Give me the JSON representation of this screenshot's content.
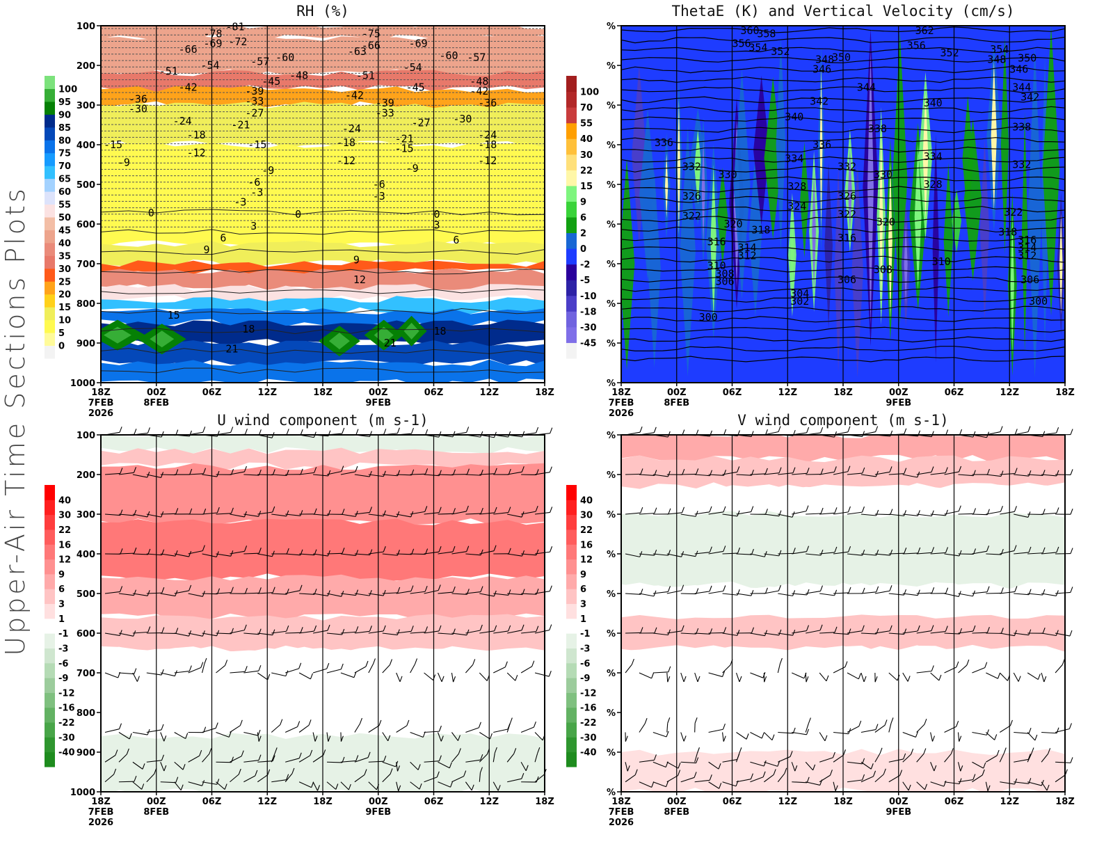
{
  "page": {
    "side_title": "Upper-Air Time Sections Plots"
  },
  "time_axis": {
    "ticks": [
      "18Z",
      "00Z",
      "06Z",
      "12Z",
      "18Z",
      "00Z",
      "06Z",
      "12Z",
      "18Z"
    ],
    "date_labels": [
      {
        "tick": 0,
        "lines": [
          "7FEB",
          "2026"
        ]
      },
      {
        "tick": 1,
        "lines": [
          "8FEB"
        ]
      },
      {
        "tick": 5,
        "lines": [
          "9FEB"
        ]
      }
    ]
  },
  "chart_data": [
    {
      "id": "rh",
      "type": "heatmap",
      "title": "RH (%)",
      "xlabel": "",
      "ylabel": "",
      "y_ticks": [
        "100",
        "200",
        "300",
        "400",
        "500",
        "600",
        "700",
        "800",
        "900",
        "1000"
      ],
      "ylim": [
        100,
        1000
      ],
      "colorbar": {
        "labels": [
          "0",
          "5",
          "10",
          "15",
          "20",
          "25",
          "30",
          "35",
          "40",
          "45",
          "50",
          "55",
          "60",
          "65",
          "70",
          "75",
          "80",
          "85",
          "90",
          "95",
          "100"
        ],
        "colors": [
          "#f3f3f3",
          "#fffb9a",
          "#fffa50",
          "#f0ee5a",
          "#ffd11a",
          "#ffa31a",
          "#ff5a1a",
          "#e8796a",
          "#ea8b7a",
          "#eda48c",
          "#f3bea6",
          "#fbe2e2",
          "#dde3fb",
          "#a3d2ff",
          "#32c0ff",
          "#169bff",
          "#0a73ea",
          "#0448b9",
          "#002b8c",
          "#058005",
          "#36ae36",
          "#7ce27c"
        ]
      },
      "layers": [
        {
          "p": [
            100,
            130
          ],
          "rh": 40
        },
        {
          "p": [
            130,
            220
          ],
          "rh": 42
        },
        {
          "p": [
            220,
            260
          ],
          "rh": 30
        },
        {
          "p": [
            260,
            300
          ],
          "rh": 20
        },
        {
          "p": [
            300,
            400
          ],
          "rh": 10
        },
        {
          "p": [
            400,
            650
          ],
          "rh": 8
        },
        {
          "p": [
            650,
            700
          ],
          "rh": 12
        },
        {
          "p": [
            700,
            720
          ],
          "rh": 25
        },
        {
          "p": [
            720,
            760
          ],
          "rh": 38
        },
        {
          "p": [
            760,
            790
          ],
          "rh": 50
        },
        {
          "p": [
            790,
            820
          ],
          "rh": 65
        },
        {
          "p": [
            820,
            850
          ],
          "rh": 75
        },
        {
          "p": [
            850,
            900
          ],
          "rh": 85
        },
        {
          "p": [
            900,
            950
          ],
          "rh": 80
        },
        {
          "p": [
            950,
            1000
          ],
          "rh": 75
        }
      ],
      "contour_labels": [
        {
          "t": 1.0,
          "p": 120,
          "v": "-78"
        },
        {
          "t": 1.4,
          "p": 103,
          "v": "-81"
        },
        {
          "t": 1.0,
          "p": 145,
          "v": "-69"
        },
        {
          "t": 1.45,
          "p": 140,
          "v": "-72"
        },
        {
          "t": 0.55,
          "p": 160,
          "v": "-66"
        },
        {
          "t": 0.2,
          "p": 215,
          "v": "-51"
        },
        {
          "t": 0.95,
          "p": 200,
          "v": "-54"
        },
        {
          "t": 1.85,
          "p": 190,
          "v": "-57"
        },
        {
          "t": 2.3,
          "p": 180,
          "v": "-60"
        },
        {
          "t": 2.55,
          "p": 225,
          "v": "-48"
        },
        {
          "t": 2.05,
          "p": 240,
          "v": "-45"
        },
        {
          "t": 0.55,
          "p": 255,
          "v": "-42"
        },
        {
          "t": -0.35,
          "p": 285,
          "v": "-36"
        },
        {
          "t": -0.35,
          "p": 310,
          "v": "-30"
        },
        {
          "t": 1.75,
          "p": 265,
          "v": "-39"
        },
        {
          "t": 1.75,
          "p": 290,
          "v": "-33"
        },
        {
          "t": 1.75,
          "p": 320,
          "v": "-27"
        },
        {
          "t": 1.5,
          "p": 350,
          "v": "-21"
        },
        {
          "t": 0.45,
          "p": 340,
          "v": "-24"
        },
        {
          "t": 0.7,
          "p": 375,
          "v": "-18"
        },
        {
          "t": 1.8,
          "p": 400,
          "v": "-15"
        },
        {
          "t": 0.7,
          "p": 420,
          "v": "-12"
        },
        {
          "t": -0.8,
          "p": 400,
          "v": "-15"
        },
        {
          "t": -0.55,
          "p": 445,
          "v": "-9"
        },
        {
          "t": 1.8,
          "p": 495,
          "v": "-6"
        },
        {
          "t": 1.85,
          "p": 520,
          "v": "-3"
        },
        {
          "t": 3.6,
          "p": 165,
          "v": "-63"
        },
        {
          "t": 3.85,
          "p": 150,
          "v": "-66"
        },
        {
          "t": 3.85,
          "p": 120,
          "v": "-75"
        },
        {
          "t": 4.7,
          "p": 145,
          "v": "-69"
        },
        {
          "t": 3.75,
          "p": 225,
          "v": "-51"
        },
        {
          "t": 4.6,
          "p": 205,
          "v": "-54"
        },
        {
          "t": 5.25,
          "p": 175,
          "v": "-60"
        },
        {
          "t": 5.75,
          "p": 180,
          "v": "-57"
        },
        {
          "t": 4.65,
          "p": 255,
          "v": "-45"
        },
        {
          "t": 3.55,
          "p": 275,
          "v": "-42"
        },
        {
          "t": 4.1,
          "p": 295,
          "v": "-39"
        },
        {
          "t": 4.1,
          "p": 320,
          "v": "-33"
        },
        {
          "t": 4.75,
          "p": 345,
          "v": "-27"
        },
        {
          "t": 5.5,
          "p": 335,
          "v": "-30"
        },
        {
          "t": 5.8,
          "p": 240,
          "v": "-48"
        },
        {
          "t": 5.8,
          "p": 265,
          "v": "-42"
        },
        {
          "t": 5.95,
          "p": 295,
          "v": "-36"
        },
        {
          "t": 3.5,
          "p": 360,
          "v": "-24"
        },
        {
          "t": 4.45,
          "p": 385,
          "v": "-21"
        },
        {
          "t": 3.4,
          "p": 395,
          "v": "-18"
        },
        {
          "t": 4.45,
          "p": 410,
          "v": "-15"
        },
        {
          "t": 3.4,
          "p": 440,
          "v": "-12"
        },
        {
          "t": 4.65,
          "p": 460,
          "v": "-9"
        },
        {
          "t": 5.95,
          "p": 375,
          "v": "-24"
        },
        {
          "t": 5.95,
          "p": 400,
          "v": "-18"
        },
        {
          "t": 5.95,
          "p": 440,
          "v": "-12"
        },
        {
          "t": 2.05,
          "p": 465,
          "v": "-9"
        },
        {
          "t": 4.05,
          "p": 500,
          "v": "-6"
        },
        {
          "t": 4.05,
          "p": 530,
          "v": "-3"
        },
        {
          "t": 1.55,
          "p": 545,
          "v": "-3"
        },
        {
          "t": 0.0,
          "p": 572,
          "v": "0"
        },
        {
          "t": 2.65,
          "p": 575,
          "v": "0"
        },
        {
          "t": 5.15,
          "p": 575,
          "v": "0"
        },
        {
          "t": 1.85,
          "p": 605,
          "v": "3"
        },
        {
          "t": 5.15,
          "p": 603,
          "v": "3"
        },
        {
          "t": 1.3,
          "p": 635,
          "v": "6"
        },
        {
          "t": 5.5,
          "p": 640,
          "v": "6"
        },
        {
          "t": 1.0,
          "p": 665,
          "v": "9"
        },
        {
          "t": 3.7,
          "p": 690,
          "v": "9"
        },
        {
          "t": 3.7,
          "p": 740,
          "v": "12"
        },
        {
          "t": 0.35,
          "p": 830,
          "v": "15"
        },
        {
          "t": 1.7,
          "p": 865,
          "v": "18"
        },
        {
          "t": 5.15,
          "p": 870,
          "v": "18"
        },
        {
          "t": 1.4,
          "p": 915,
          "v": "21"
        },
        {
          "t": 4.25,
          "p": 900,
          "v": "21"
        }
      ]
    },
    {
      "id": "thetae",
      "type": "heatmap",
      "title": "ThetaE (K) and Vertical Velocity (cm/s)",
      "xlabel": "",
      "ylabel": "",
      "y_ticks": [
        "%",
        "%",
        "%",
        "%",
        "%",
        "%",
        "%",
        "%",
        "%",
        "%"
      ],
      "colorbar": {
        "labels": [
          "-45",
          "-30",
          "-18",
          "-10",
          "-5",
          "-2",
          "0",
          "2",
          "6",
          "9",
          "15",
          "22",
          "30",
          "40",
          "55",
          "70",
          "100"
        ],
        "colors": [
          "#f3f3f3",
          "#7f6fe8",
          "#7063df",
          "#4b3ec8",
          "#2d22a6",
          "#2a009c",
          "#1e3cff",
          "#1867d4",
          "#11a011",
          "#39d339",
          "#7ef57e",
          "#fff7a8",
          "#ffe07a",
          "#ffc03a",
          "#ff9f00",
          "#c93c3c",
          "#b22828",
          "#a21e1e"
        ]
      },
      "contour_labels": [
        {
          "t": 1.3,
          "p": 112,
          "v": "360"
        },
        {
          "t": 1.6,
          "p": 120,
          "v": "358"
        },
        {
          "t": 1.15,
          "p": 145,
          "v": "356"
        },
        {
          "t": 1.45,
          "p": 155,
          "v": "354"
        },
        {
          "t": 1.85,
          "p": 165,
          "v": "352"
        },
        {
          "t": 2.65,
          "p": 185,
          "v": "348"
        },
        {
          "t": 2.95,
          "p": 180,
          "v": "350"
        },
        {
          "t": 2.6,
          "p": 210,
          "v": "346"
        },
        {
          "t": 4.45,
          "p": 112,
          "v": "362"
        },
        {
          "t": 4.3,
          "p": 150,
          "v": "356"
        },
        {
          "t": 4.9,
          "p": 168,
          "v": "352"
        },
        {
          "t": 5.8,
          "p": 160,
          "v": "354"
        },
        {
          "t": 5.75,
          "p": 185,
          "v": "348"
        },
        {
          "t": 6.3,
          "p": 182,
          "v": "350"
        },
        {
          "t": 6.15,
          "p": 210,
          "v": "346"
        },
        {
          "t": 3.4,
          "p": 255,
          "v": "344"
        },
        {
          "t": 6.2,
          "p": 255,
          "v": "344"
        },
        {
          "t": 6.35,
          "p": 280,
          "v": "342"
        },
        {
          "t": 2.55,
          "p": 290,
          "v": "342"
        },
        {
          "t": 4.6,
          "p": 295,
          "v": "340"
        },
        {
          "t": 2.1,
          "p": 330,
          "v": "340"
        },
        {
          "t": 3.6,
          "p": 360,
          "v": "338"
        },
        {
          "t": 6.2,
          "p": 355,
          "v": "338"
        },
        {
          "t": -0.25,
          "p": 395,
          "v": "336"
        },
        {
          "t": 2.6,
          "p": 400,
          "v": "336"
        },
        {
          "t": 2.1,
          "p": 435,
          "v": "334"
        },
        {
          "t": 4.6,
          "p": 430,
          "v": "334"
        },
        {
          "t": 0.25,
          "p": 455,
          "v": "332"
        },
        {
          "t": 3.05,
          "p": 455,
          "v": "332"
        },
        {
          "t": 6.2,
          "p": 450,
          "v": "332"
        },
        {
          "t": 0.9,
          "p": 475,
          "v": "330"
        },
        {
          "t": 3.7,
          "p": 475,
          "v": "330"
        },
        {
          "t": 2.15,
          "p": 505,
          "v": "328"
        },
        {
          "t": 4.6,
          "p": 500,
          "v": "328"
        },
        {
          "t": 0.25,
          "p": 530,
          "v": "326"
        },
        {
          "t": 3.05,
          "p": 530,
          "v": "326"
        },
        {
          "t": 2.15,
          "p": 555,
          "v": "324"
        },
        {
          "t": 0.25,
          "p": 580,
          "v": "322"
        },
        {
          "t": 3.05,
          "p": 575,
          "v": "322"
        },
        {
          "t": 6.05,
          "p": 570,
          "v": "322"
        },
        {
          "t": 1.0,
          "p": 600,
          "v": "320"
        },
        {
          "t": 3.75,
          "p": 595,
          "v": "320"
        },
        {
          "t": 1.5,
          "p": 615,
          "v": "318"
        },
        {
          "t": 5.95,
          "p": 620,
          "v": "318"
        },
        {
          "t": 0.7,
          "p": 645,
          "v": "316"
        },
        {
          "t": 3.05,
          "p": 635,
          "v": "316"
        },
        {
          "t": 6.3,
          "p": 640,
          "v": "316"
        },
        {
          "t": 1.25,
          "p": 660,
          "v": "314"
        },
        {
          "t": 6.3,
          "p": 660,
          "v": "314"
        },
        {
          "t": 1.25,
          "p": 680,
          "v": "312"
        },
        {
          "t": 6.3,
          "p": 680,
          "v": "312"
        },
        {
          "t": 0.7,
          "p": 705,
          "v": "310"
        },
        {
          "t": 4.75,
          "p": 695,
          "v": "310"
        },
        {
          "t": 0.85,
          "p": 725,
          "v": "308"
        },
        {
          "t": 3.7,
          "p": 715,
          "v": "308"
        },
        {
          "t": 0.85,
          "p": 745,
          "v": "306"
        },
        {
          "t": 3.05,
          "p": 740,
          "v": "306"
        },
        {
          "t": 6.35,
          "p": 740,
          "v": "306"
        },
        {
          "t": 2.2,
          "p": 775,
          "v": "304"
        },
        {
          "t": 2.2,
          "p": 795,
          "v": "302"
        },
        {
          "t": 6.5,
          "p": 795,
          "v": "300"
        },
        {
          "t": 0.55,
          "p": 835,
          "v": "300"
        }
      ]
    },
    {
      "id": "uwind",
      "type": "heatmap",
      "title": "U wind component (m s-1)",
      "xlabel": "",
      "ylabel": "",
      "y_ticks": [
        "100",
        "200",
        "300",
        "400",
        "500",
        "600",
        "700",
        "800",
        "900",
        "1000"
      ],
      "ylim": [
        100,
        1000
      ],
      "colorbar": {
        "labels": [
          "-40",
          "-30",
          "-22",
          "-16",
          "-12",
          "-9",
          "-6",
          "-3",
          "-1",
          "1",
          "3",
          "6",
          "9",
          "12",
          "16",
          "22",
          "30",
          "40"
        ],
        "colors": [
          "#1e8c1e",
          "#2f962f",
          "#48a548",
          "#63b263",
          "#7fc07f",
          "#9ccc9c",
          "#b5dbb5",
          "#cfe6cf",
          "#e6f2e6",
          "#ffffff",
          "#ffe0e0",
          "#ffc4c4",
          "#ffaaaa",
          "#ff9090",
          "#ff7878",
          "#ff5c5c",
          "#ff3d3d",
          "#ff1f1f",
          "#ff0000"
        ]
      },
      "layers": [
        {
          "p": [
            100,
            140
          ],
          "u": -3
        },
        {
          "p": [
            140,
            180
          ],
          "u": 3
        },
        {
          "p": [
            180,
            320
          ],
          "u": 9
        },
        {
          "p": [
            320,
            460
          ],
          "u": 12
        },
        {
          "p": [
            460,
            560
          ],
          "u": 6
        },
        {
          "p": [
            560,
            640
          ],
          "u": 3
        },
        {
          "p": [
            640,
            760
          ],
          "u": 0
        },
        {
          "p": [
            760,
            860
          ],
          "u": -1
        },
        {
          "p": [
            860,
            1000
          ],
          "u": -3
        }
      ],
      "barb_levels": [
        100,
        200,
        300,
        400,
        500,
        600,
        700,
        850,
        925,
        975
      ]
    },
    {
      "id": "vwind",
      "type": "heatmap",
      "title": "V wind component (m s-1)",
      "xlabel": "",
      "ylabel": "",
      "y_ticks": [
        "%",
        "%",
        "%",
        "%",
        "%",
        "%",
        "%",
        "%",
        "%",
        "%"
      ],
      "colorbar": {
        "labels": [
          "-40",
          "-30",
          "-22",
          "-16",
          "-12",
          "-9",
          "-6",
          "-3",
          "-1",
          "1",
          "3",
          "6",
          "9",
          "12",
          "16",
          "22",
          "30",
          "40"
        ],
        "colors": [
          "#1e8c1e",
          "#2f962f",
          "#48a548",
          "#63b263",
          "#7fc07f",
          "#9ccc9c",
          "#b5dbb5",
          "#cfe6cf",
          "#e6f2e6",
          "#ffffff",
          "#ffe0e0",
          "#ffc4c4",
          "#ffaaaa",
          "#ff9090",
          "#ff7878",
          "#ff5c5c",
          "#ff3d3d",
          "#ff1f1f",
          "#ff0000"
        ]
      },
      "layers": [
        {
          "p": [
            100,
            160
          ],
          "v": 6
        },
        {
          "p": [
            160,
            230
          ],
          "v": 3
        },
        {
          "p": [
            230,
            300
          ],
          "v": 0
        },
        {
          "p": [
            300,
            480
          ],
          "v": -3
        },
        {
          "p": [
            480,
            560
          ],
          "v": 0
        },
        {
          "p": [
            560,
            640
          ],
          "v": 3
        },
        {
          "p": [
            640,
            760
          ],
          "v": -1
        },
        {
          "p": [
            760,
            900
          ],
          "v": 0
        },
        {
          "p": [
            900,
            1000
          ],
          "v": 1
        }
      ],
      "barb_levels": [
        100,
        200,
        300,
        400,
        500,
        600,
        700,
        850,
        925,
        975
      ]
    }
  ]
}
